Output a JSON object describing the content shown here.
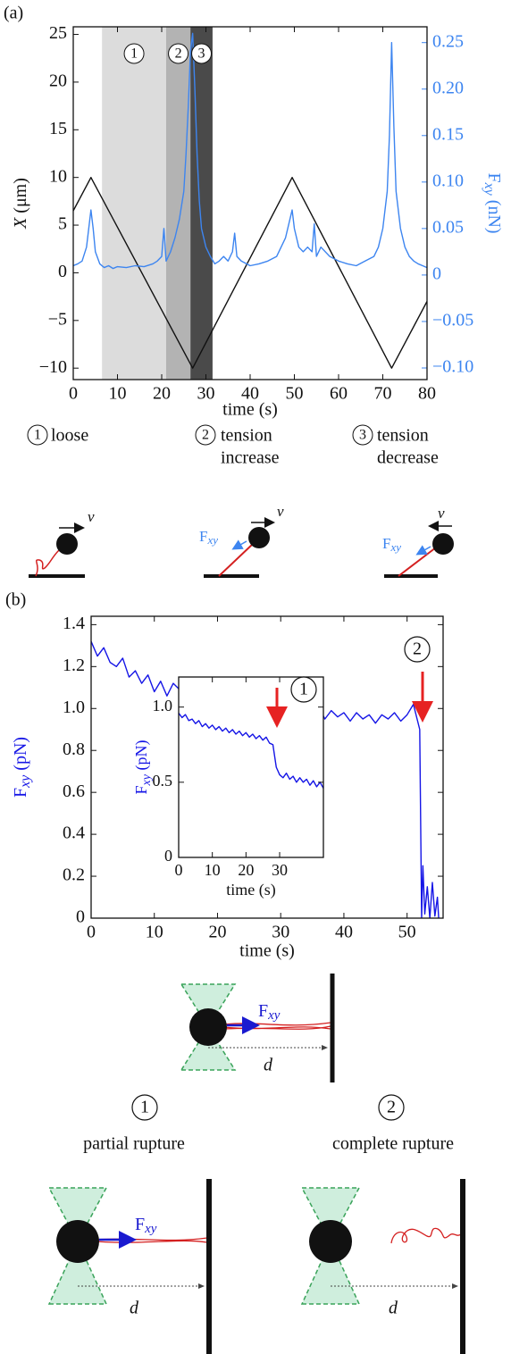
{
  "chart_data": [
    {
      "type": "line",
      "panel": "(a)",
      "xlabel": "time (s)",
      "ylabel": {
        "main": "X",
        "unit": " (μm)"
      },
      "y2label": {
        "main": "F",
        "sub": "xy",
        "unit": " (nN)"
      },
      "xlim": [
        0,
        80
      ],
      "xticks": [
        0,
        10,
        20,
        30,
        40,
        50,
        60,
        70,
        80
      ],
      "ylim": [
        -11.2,
        25.8
      ],
      "yticks": [
        {
          "value": -10,
          "label": "−10"
        },
        {
          "value": -5,
          "label": "−5"
        },
        0,
        5,
        10,
        15,
        20,
        25
      ],
      "y2lim": [
        -0.1125,
        0.267
      ],
      "y2ticks": [
        {
          "value": -0.1,
          "label": "−0.10"
        },
        {
          "value": -0.05,
          "label": "−0.05"
        },
        0,
        0.05,
        {
          "value": 0.1,
          "label": "0.10"
        },
        0.15,
        {
          "value": 0.2,
          "label": "0.20"
        },
        0.25
      ],
      "regions": [
        {
          "label": "1",
          "x": [
            6.5,
            21
          ],
          "color": "#dcdcdc"
        },
        {
          "label": "2",
          "x": [
            21,
            26.5
          ],
          "color": "#b3b3b3"
        },
        {
          "label": "3",
          "x": [
            26.5,
            31.5
          ],
          "color": "#4a4a4a"
        }
      ],
      "series": [
        {
          "color": "#111111",
          "x": [
            0,
            4,
            27,
            49.5,
            72,
            80
          ],
          "values": [
            6.5,
            10,
            -10,
            10,
            -10,
            -3
          ]
        },
        {
          "color": "#3d85f0",
          "axis": "y2",
          "x": [
            0,
            1,
            2,
            3,
            3.5,
            4,
            4.5,
            5,
            6,
            7,
            8,
            9,
            10,
            12,
            14,
            16,
            18,
            19,
            20,
            20.5,
            21,
            22,
            23,
            24,
            25,
            25.5,
            26,
            26.5,
            27,
            27.5,
            28,
            28.5,
            29,
            30,
            31,
            32,
            33,
            34,
            35,
            36,
            36.5,
            37,
            38,
            40,
            42,
            44,
            46,
            47,
            48,
            49,
            49.5,
            50,
            51,
            52,
            53,
            54,
            54.5,
            55,
            56,
            58,
            60,
            62,
            64,
            66,
            68,
            69,
            70,
            71,
            71.5,
            72,
            72.5,
            73,
            74,
            75,
            76,
            77,
            78,
            79,
            80
          ],
          "values": [
            0.01,
            0.012,
            0.015,
            0.03,
            0.05,
            0.07,
            0.05,
            0.025,
            0.012,
            0.008,
            0.01,
            0.007,
            0.009,
            0.008,
            0.01,
            0.009,
            0.012,
            0.015,
            0.02,
            0.05,
            0.015,
            0.025,
            0.04,
            0.06,
            0.09,
            0.13,
            0.18,
            0.24,
            0.26,
            0.2,
            0.13,
            0.08,
            0.05,
            0.03,
            0.02,
            0.012,
            0.015,
            0.02,
            0.015,
            0.025,
            0.045,
            0.02,
            0.015,
            0.01,
            0.012,
            0.015,
            0.02,
            0.03,
            0.04,
            0.06,
            0.07,
            0.05,
            0.03,
            0.025,
            0.03,
            0.025,
            0.055,
            0.02,
            0.03,
            0.02,
            0.015,
            0.012,
            0.01,
            0.015,
            0.02,
            0.03,
            0.05,
            0.09,
            0.15,
            0.25,
            0.16,
            0.09,
            0.05,
            0.03,
            0.02,
            0.015,
            0.012,
            0.01,
            0.008
          ]
        }
      ]
    },
    {
      "type": "line",
      "panel": "(b)",
      "xlabel": "time (s)",
      "ylabel": {
        "main": "F",
        "sub": "xy",
        "unit": " (pN)"
      },
      "xlim": [
        0,
        55.7
      ],
      "xticks": [
        0,
        10,
        20,
        30,
        40,
        50
      ],
      "ylim": [
        0,
        1.44
      ],
      "yticks": [
        0,
        0.2,
        0.4,
        0.6,
        0.8,
        {
          "value": 1,
          "label": "1.0"
        },
        1.2,
        1.4
      ],
      "series": [
        {
          "color": "#1515e6",
          "x": [
            0,
            1,
            2,
            3,
            4,
            5,
            6,
            7,
            8,
            9,
            10,
            11,
            12,
            13,
            14,
            15,
            16,
            17,
            18,
            19,
            20,
            21,
            22,
            23,
            24,
            25,
            26,
            27,
            28,
            29,
            30,
            31,
            32,
            33,
            34,
            35,
            36,
            37,
            38,
            39,
            40,
            41,
            42,
            43,
            44,
            45,
            46,
            47,
            48,
            49,
            50,
            51,
            52,
            52.3,
            52.5,
            52.8,
            53.2,
            53.6,
            54,
            54.4,
            54.8,
            55
          ],
          "values": [
            1.32,
            1.25,
            1.29,
            1.22,
            1.2,
            1.24,
            1.15,
            1.18,
            1.12,
            1.16,
            1.08,
            1.13,
            1.06,
            1.12,
            1.09,
            1.03,
            1.1,
            1.05,
            1.07,
            1.02,
            1.08,
            1.03,
            1.06,
            1.0,
            1.05,
            0.99,
            1.04,
            1.0,
            1.03,
            0.97,
            1.02,
            0.98,
            1.01,
            0.96,
            1.0,
            0.97,
            1.01,
            0.95,
            0.99,
            0.96,
            0.98,
            0.94,
            0.98,
            0.95,
            0.97,
            0.93,
            0.97,
            0.95,
            0.98,
            0.94,
            0.97,
            1.02,
            0.9,
            0.0,
            0.25,
            0.02,
            0.15,
            0.0,
            0.17,
            0.01,
            0.1,
            0.0
          ]
        }
      ]
    },
    {
      "type": "line",
      "xlabel": "time (s)",
      "ylabel": {
        "main": "F",
        "sub": "xy",
        "unit": " (pN)"
      },
      "xlim": [
        0,
        43
      ],
      "xticks": [
        0,
        10,
        20,
        30
      ],
      "ylim": [
        0,
        1.2
      ],
      "yticks": [
        0,
        0.5,
        {
          "value": 1,
          "label": "1.0"
        }
      ],
      "series": [
        {
          "color": "#1515e6",
          "x": [
            0,
            1,
            2,
            3,
            4,
            5,
            6,
            7,
            8,
            9,
            10,
            11,
            12,
            13,
            14,
            15,
            16,
            17,
            18,
            19,
            20,
            21,
            22,
            23,
            24,
            25,
            26,
            27,
            28,
            29,
            30,
            31,
            32,
            33,
            34,
            35,
            36,
            37,
            38,
            39,
            40,
            41,
            42,
            43
          ],
          "values": [
            0.96,
            0.93,
            0.95,
            0.91,
            0.92,
            0.89,
            0.91,
            0.87,
            0.89,
            0.86,
            0.88,
            0.85,
            0.87,
            0.84,
            0.86,
            0.83,
            0.85,
            0.82,
            0.84,
            0.81,
            0.83,
            0.8,
            0.82,
            0.79,
            0.81,
            0.78,
            0.8,
            0.76,
            0.75,
            0.6,
            0.55,
            0.53,
            0.56,
            0.52,
            0.54,
            0.5,
            0.53,
            0.5,
            0.52,
            0.48,
            0.51,
            0.47,
            0.5,
            0.46
          ]
        }
      ]
    }
  ],
  "annotations": {
    "inset_marker": "1",
    "main_marker": "2"
  },
  "diagram_a": {
    "velocity": "v",
    "force": {
      "main": "F",
      "sub": "xy"
    },
    "states": [
      {
        "number": "1",
        "label": [
          "loose"
        ]
      },
      {
        "number": "2",
        "label": [
          "tension",
          "increase"
        ]
      },
      {
        "number": "3",
        "label": [
          "tension",
          "decrease"
        ]
      }
    ]
  },
  "diagram_b": {
    "force": {
      "main": "F",
      "sub": "xy"
    },
    "distance": "d",
    "states": [
      {
        "number": "1",
        "label": "partial rupture"
      },
      {
        "number": "2",
        "label": "complete rupture"
      }
    ]
  }
}
